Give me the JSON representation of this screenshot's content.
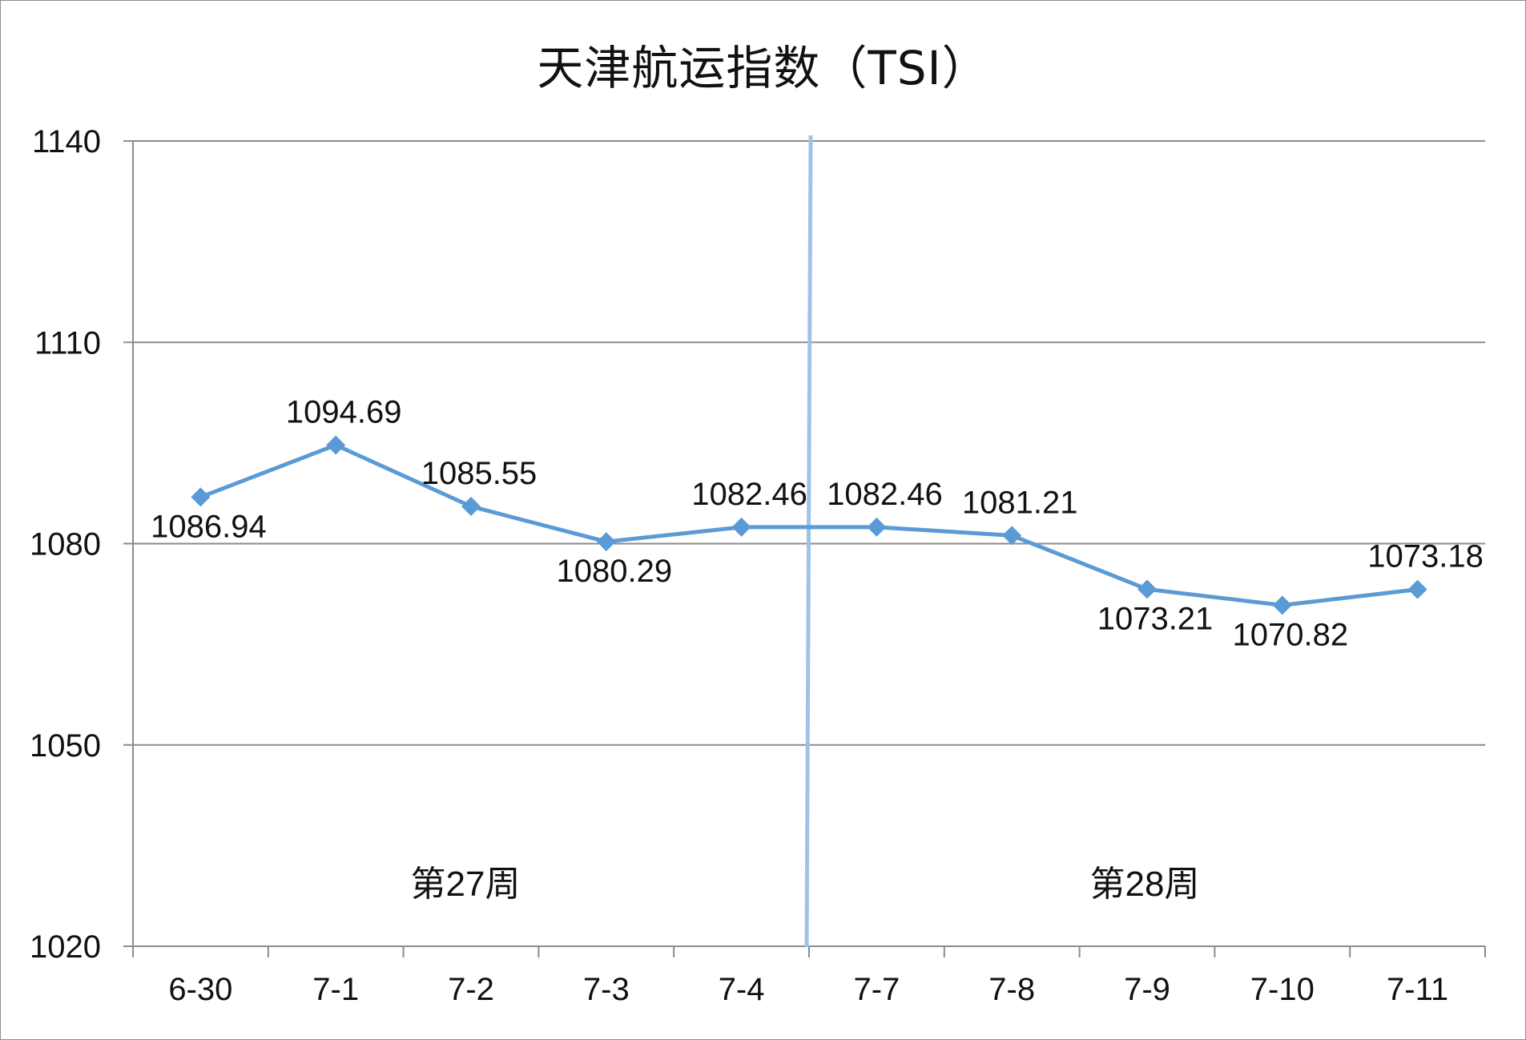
{
  "chart_data": {
    "type": "line",
    "title": "天津航运指数（TSI）",
    "categories": [
      "6-30",
      "7-1",
      "7-2",
      "7-3",
      "7-4",
      "7-7",
      "7-8",
      "7-9",
      "7-10",
      "7-11"
    ],
    "series": [
      {
        "values": [
          1086.94,
          1094.69,
          1085.55,
          1080.29,
          1082.46,
          1082.46,
          1081.21,
          1073.21,
          1070.82,
          1073.18
        ],
        "value_labels": [
          "1086.94",
          "1094.69",
          "1085.55",
          "1080.29",
          "1082.46",
          "1082.46",
          "1081.21",
          "1073.21",
          "1070.82",
          "1073.18"
        ],
        "label_position": [
          "below",
          "above",
          "above",
          "below",
          "above",
          "above",
          "above",
          "below",
          "below",
          "above"
        ]
      }
    ],
    "ylim": [
      1020,
      1140
    ],
    "yticks": [
      1020,
      1050,
      1080,
      1110,
      1140
    ],
    "ytick_labels": [
      "1020",
      "1050",
      "1080",
      "1110",
      "1140"
    ],
    "grid": true,
    "annotations": [
      "第27周",
      "第28周"
    ],
    "colors": {
      "series_line": "#5b9bd5",
      "week_divider": "#9dc3e6",
      "gridline": "#8c8c8c",
      "axis": "#8c8c8c"
    }
  }
}
